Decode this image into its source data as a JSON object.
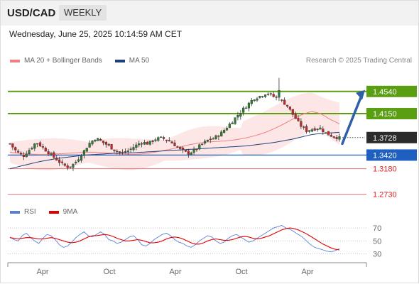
{
  "header": {
    "pair": "USD/CAD",
    "period": "WEEKLY"
  },
  "datetime": "Wednesday, June 25, 2025 10:14:59 AM CET",
  "legend_main": [
    {
      "label": "MA 20 + Bollinger Bands",
      "color": "#f08080"
    },
    {
      "label": "MA 50",
      "color": "#1f3f7a"
    }
  ],
  "legend_rsi": [
    {
      "label": "RSI",
      "color": "#5b7fd6"
    },
    {
      "label": "9MA",
      "color": "#e00000"
    }
  ],
  "copyright": "Research © 2025 Trading Central",
  "chart_data": [
    {
      "type": "candlestick",
      "title": "USD/CAD",
      "levels": [
        {
          "value": 1.454,
          "label": "1.4540",
          "kind": "resistance"
        },
        {
          "value": 1.415,
          "label": "1.4150",
          "kind": "resistance"
        },
        {
          "value": 1.3728,
          "label": "1.3728",
          "kind": "last"
        },
        {
          "value": 1.342,
          "label": "1.3420",
          "kind": "pivot"
        },
        {
          "value": 1.318,
          "label": "1.3180",
          "kind": "support"
        },
        {
          "value": 1.273,
          "label": "1.2730",
          "kind": "support"
        }
      ],
      "x_tick_labels": [
        "Apr",
        "Oct",
        "Apr",
        "Oct",
        "Apr"
      ],
      "ylim": [
        1.255,
        1.495
      ],
      "ma20_approx": [
        1.347,
        1.345,
        1.344,
        1.343,
        1.343,
        1.344,
        1.345,
        1.346,
        1.347,
        1.347,
        1.346,
        1.345,
        1.344,
        1.343,
        1.344,
        1.346,
        1.349,
        1.352,
        1.356,
        1.36,
        1.363,
        1.365,
        1.366,
        1.367,
        1.369,
        1.372,
        1.376,
        1.381,
        1.388,
        1.396,
        1.405,
        1.413,
        1.419,
        1.415,
        1.405,
        1.397
      ],
      "ma50_approx": [
        1.318,
        1.322,
        1.326,
        1.33,
        1.333,
        1.336,
        1.338,
        1.34,
        1.342,
        1.343,
        1.344,
        1.345,
        1.346,
        1.346,
        1.347,
        1.348,
        1.349,
        1.35,
        1.351,
        1.352,
        1.353,
        1.354,
        1.355,
        1.356,
        1.357,
        1.358,
        1.36,
        1.362,
        1.364,
        1.367,
        1.37,
        1.374,
        1.378,
        1.38,
        1.381,
        1.382
      ],
      "arrow": {
        "direction": "up",
        "from": 1.362,
        "to": 1.454
      }
    },
    {
      "type": "line",
      "title": "RSI",
      "yticks": [
        70,
        50,
        30
      ],
      "ylim": [
        25,
        80
      ],
      "series": [
        {
          "name": "RSI",
          "values": [
            56,
            52,
            50,
            58,
            62,
            55,
            50,
            46,
            54,
            60,
            58,
            52,
            44,
            40,
            42,
            48,
            55,
            60,
            64,
            58,
            56,
            60,
            64,
            60,
            52,
            50,
            46,
            48,
            52,
            56,
            58,
            52,
            44,
            42,
            46,
            52,
            56,
            60,
            62,
            58,
            52,
            48,
            46,
            42,
            40,
            44,
            50,
            54,
            58,
            56,
            50,
            46,
            48,
            54,
            58,
            60,
            56,
            52,
            48,
            50,
            54,
            58,
            62,
            66,
            70,
            72,
            74,
            70,
            68,
            64,
            60,
            56,
            50,
            44,
            40,
            38,
            36,
            34,
            33,
            35,
            38
          ]
        },
        {
          "name": "9MA",
          "values": [
            55,
            54,
            53,
            54,
            55,
            55,
            54,
            53,
            53,
            54,
            55,
            54,
            52,
            50,
            48,
            47,
            48,
            50,
            53,
            56,
            58,
            58,
            59,
            60,
            59,
            57,
            54,
            52,
            50,
            50,
            51,
            52,
            51,
            49,
            47,
            47,
            48,
            50,
            53,
            55,
            56,
            55,
            53,
            50,
            47,
            45,
            45,
            47,
            50,
            52,
            53,
            52,
            51,
            51,
            52,
            54,
            56,
            57,
            56,
            54,
            53,
            54,
            56,
            58,
            61,
            64,
            67,
            69,
            70,
            69,
            67,
            64,
            61,
            57,
            53,
            49,
            45,
            42,
            39,
            37,
            36
          ]
        }
      ]
    }
  ]
}
